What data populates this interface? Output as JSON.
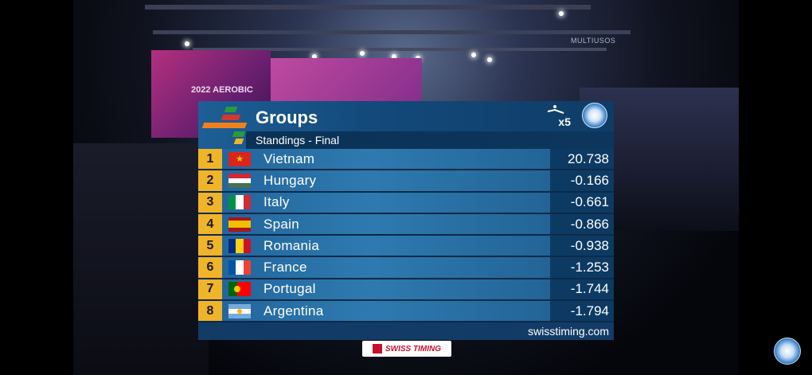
{
  "scoreboard": {
    "title": "Groups",
    "subtitle": "Standings - Final",
    "multiplier": "x5",
    "footer_url": "swisstiming.com",
    "sponsor": "SWISS TIMING",
    "accent_color": "#f0b428",
    "rows": [
      {
        "rank": "1",
        "country": "Vietnam",
        "score": "20.738",
        "flag": "vietnam-flag-icon"
      },
      {
        "rank": "2",
        "country": "Hungary",
        "score": "-0.166",
        "flag": "hungary-flag-icon"
      },
      {
        "rank": "3",
        "country": "Italy",
        "score": "-0.661",
        "flag": "italy-flag-icon"
      },
      {
        "rank": "4",
        "country": "Spain",
        "score": "-0.866",
        "flag": "spain-flag-icon"
      },
      {
        "rank": "5",
        "country": "Romania",
        "score": "-0.938",
        "flag": "romania-flag-icon"
      },
      {
        "rank": "6",
        "country": "France",
        "score": "-1.253",
        "flag": "france-flag-icon"
      },
      {
        "rank": "7",
        "country": "Portugal",
        "score": "-1.744",
        "flag": "portugal-flag-icon"
      },
      {
        "rank": "8",
        "country": "Argentina",
        "score": "-1.794",
        "flag": "argentina-flag-icon"
      }
    ]
  },
  "background": {
    "venue_sign": "MULTIUSOS",
    "banner_text": "2022 AEROBIC"
  }
}
